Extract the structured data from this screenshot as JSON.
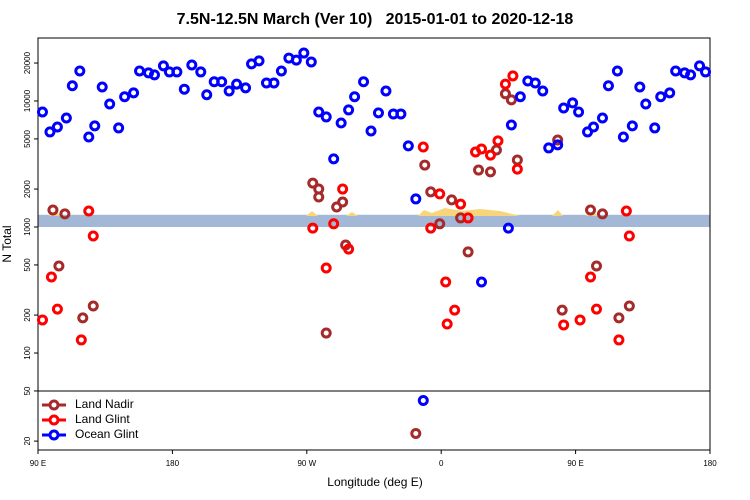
{
  "chart_data": {
    "type": "scatter",
    "title": "7.5N-12.5N March (Ver 10)   2015-01-01 to 2020-12-18",
    "x_label": "Longitude (deg E)",
    "y_label": "N Total",
    "xlim": [
      90,
      540
    ],
    "xticks": [
      {
        "value": 90,
        "label": "90 E"
      },
      180,
      {
        "value": 270,
        "label": "90 W"
      },
      {
        "value": 360,
        "label": "0"
      },
      {
        "value": 450,
        "label": "90 E"
      },
      {
        "value": 540,
        "label": "180"
      }
    ],
    "ylim": [
      17,
      31600
    ],
    "yticks": [
      20,
      50,
      100,
      200,
      500,
      1000,
      2000,
      5000,
      10000,
      20000
    ],
    "ylog": true,
    "grid": false,
    "legend": "lower left",
    "band": [
      1000,
      1250
    ],
    "band_color": "#a3b8d6",
    "separator": 50,
    "series": [
      {
        "name": "Land Nadir",
        "color": "#a52a2a",
        "x": [
          100,
          104,
          108,
          120,
          127,
          274,
          278,
          278,
          283,
          290,
          294,
          296,
          349,
          353,
          359,
          367,
          373,
          378,
          385,
          393,
          397,
          403,
          407,
          411,
          438,
          441,
          460,
          464,
          468,
          479,
          486,
          343
        ],
        "values": [
          1365,
          490,
          1270,
          190,
          236,
          2230,
          2000,
          1730,
          144,
          1440,
          1580,
          720,
          3100,
          1900,
          1060,
          1640,
          1180,
          634,
          2830,
          2740,
          4080,
          11400,
          10200,
          3400,
          4900,
          219,
          1365,
          490,
          1270,
          190,
          236,
          23
        ]
      },
      {
        "name": "Land Glint",
        "color": "#ff0000",
        "x": [
          93,
          99,
          103,
          119,
          124,
          127,
          274,
          283,
          288,
          294,
          298,
          348,
          353,
          359,
          363,
          364,
          369,
          373,
          378,
          383,
          387,
          393,
          398,
          403,
          408,
          411,
          442,
          453,
          460,
          464,
          479,
          484,
          486
        ],
        "values": [
          183,
          401,
          223,
          127,
          1340,
          849,
          980,
          473,
          1060,
          2000,
          668,
          4310,
          980,
          1830,
          366,
          170,
          219,
          1520,
          1180,
          3940,
          4160,
          3720,
          4820,
          13600,
          15800,
          2880,
          167,
          183,
          401,
          223,
          127,
          1340,
          849
        ]
      },
      {
        "name": "Ocean Glint",
        "color": "#0000ff",
        "x": [
          93,
          98,
          103,
          109,
          113,
          118,
          124,
          128,
          133,
          138,
          144,
          148,
          154,
          158,
          164,
          168,
          174,
          178,
          183,
          188,
          193,
          199,
          203,
          208,
          213,
          218,
          223,
          229,
          233,
          238,
          243,
          248,
          253,
          258,
          263,
          268,
          273,
          278,
          283,
          288,
          293,
          298,
          302,
          308,
          313,
          318,
          323,
          328,
          333,
          338,
          343,
          348,
          387,
          405,
          407,
          413,
          418,
          423,
          428,
          432,
          438,
          442,
          448,
          452,
          458,
          462,
          468,
          472,
          478,
          482,
          488,
          493,
          497,
          503,
          507,
          513,
          517,
          523,
          527,
          533,
          537
        ],
        "values": [
          8180,
          5680,
          6220,
          7330,
          13200,
          17300,
          5180,
          6340,
          12900,
          9460,
          6110,
          10800,
          11600,
          17300,
          16700,
          16100,
          19000,
          17000,
          17000,
          12400,
          19300,
          17000,
          11200,
          14200,
          14200,
          12000,
          13600,
          12700,
          19700,
          20800,
          13900,
          13900,
          17300,
          21900,
          21100,
          24000,
          20400,
          8180,
          7470,
          3470,
          6690,
          8490,
          10800,
          14200,
          5780,
          8040,
          12000,
          7890,
          7890,
          4400,
          1670,
          42,
          366,
          980,
          6450,
          10800,
          14400,
          13900,
          12000,
          4240,
          4480,
          8800,
          9650,
          8180,
          5680,
          6220,
          7330,
          13200,
          17300,
          5180,
          6340,
          12900,
          9460,
          6110,
          10800,
          11600,
          17300,
          16700,
          16100,
          19000,
          17000
        ]
      }
    ]
  }
}
